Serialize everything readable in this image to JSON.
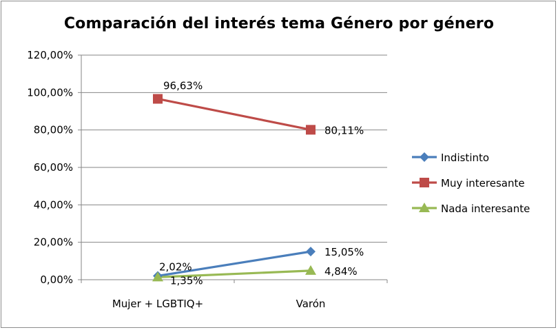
{
  "chart_data": {
    "type": "line",
    "title": "Comparación del interés tema Género por género",
    "categories": [
      "Mujer + LGBTIQ+",
      "Varón"
    ],
    "ylim": [
      0,
      120
    ],
    "yticks": [
      "0,00%",
      "20,00%",
      "40,00%",
      "60,00%",
      "80,00%",
      "100,00%",
      "120,00%"
    ],
    "ytick_values": [
      0,
      20,
      40,
      60,
      80,
      100,
      120
    ],
    "grid": true,
    "legend_position": "right",
    "series": [
      {
        "name": "Indistinto",
        "values": [
          2.02,
          15.05
        ],
        "labels": [
          "2,02%",
          "15,05%"
        ],
        "color": "#4a7ebb",
        "marker": "diamond"
      },
      {
        "name": "Muy interesante",
        "values": [
          96.63,
          80.11
        ],
        "labels": [
          "96,63%",
          "80,11%"
        ],
        "color": "#be4b48",
        "marker": "square"
      },
      {
        "name": "Nada interesante",
        "values": [
          1.35,
          4.84
        ],
        "labels": [
          "1,35%",
          "4,84%"
        ],
        "color": "#98b954",
        "marker": "triangle"
      }
    ]
  }
}
